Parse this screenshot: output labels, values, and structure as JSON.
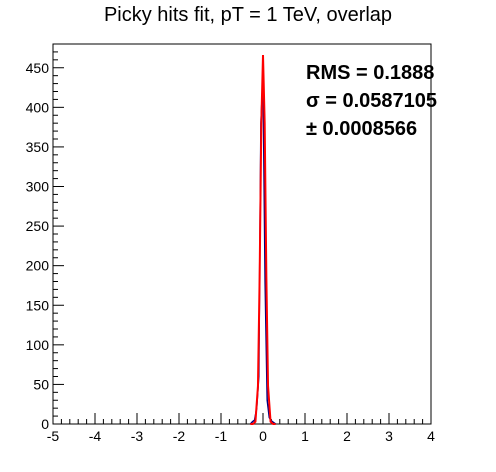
{
  "chart_data": {
    "type": "line",
    "title": "Picky hits fit, pT = 1 TeV, overlap",
    "xlabel": "",
    "ylabel": "",
    "xlim": [
      -5,
      4
    ],
    "ylim": [
      0,
      480
    ],
    "x_ticks": [
      -5,
      -4,
      -3,
      -2,
      -1,
      0,
      1,
      2,
      3,
      4
    ],
    "y_ticks": [
      0,
      50,
      100,
      150,
      200,
      250,
      300,
      350,
      400,
      450
    ],
    "x_tick_labels": [
      "-5",
      "-4",
      "-3",
      "-2",
      "-1",
      "0",
      "1",
      "2",
      "3",
      "4"
    ],
    "y_tick_labels": [
      "0",
      "50",
      "100",
      "150",
      "200",
      "250",
      "300",
      "350",
      "400",
      "450"
    ],
    "legend": "none",
    "grid": false,
    "series": [
      {
        "color": "#000080",
        "style": "histogram",
        "x": [
          -0.3,
          -0.25,
          -0.2,
          -0.15,
          -0.1,
          -0.05,
          0.0,
          0.05,
          0.1,
          0.15,
          0.2,
          0.25,
          0.3
        ],
        "y": [
          0,
          3,
          5,
          20,
          60,
          380,
          440,
          180,
          30,
          8,
          4,
          2,
          0
        ]
      },
      {
        "color": "#ff0000",
        "style": "gaussian_fit",
        "x": [
          -0.3,
          -0.24,
          -0.18,
          -0.12,
          -0.08,
          -0.04,
          0.0,
          0.04,
          0.08,
          0.12,
          0.18,
          0.24,
          0.3
        ],
        "y": [
          0,
          0,
          3,
          48,
          186,
          380,
          466,
          380,
          186,
          48,
          3,
          0,
          0
        ]
      }
    ],
    "stats": {
      "rms": "RMS = 0.1888",
      "sigma": "σ = 0.0587105",
      "error": "± 0.0008566"
    }
  }
}
